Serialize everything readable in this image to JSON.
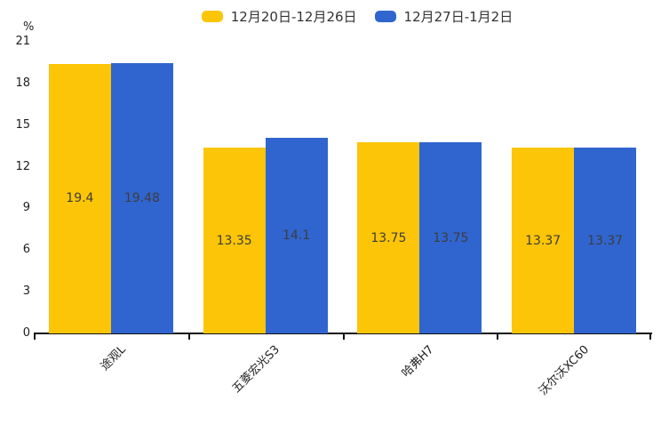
{
  "chart_data": {
    "type": "bar",
    "title": "",
    "y_axis_unit": "%",
    "categories": [
      "途观L",
      "五菱宏光S3",
      "哈弗H7",
      "沃尔沃XC60"
    ],
    "series": [
      {
        "name": "12月20日-12月26日",
        "color": "#FDC507",
        "values": [
          19.4,
          13.35,
          13.75,
          13.37
        ]
      },
      {
        "name": "12月27日-1月2日",
        "color": "#3065CF",
        "values": [
          19.48,
          14.1,
          13.75,
          13.37
        ]
      }
    ],
    "ylim": [
      0,
      21
    ],
    "yticks": [
      0,
      3,
      6,
      9,
      12,
      15,
      18,
      21
    ],
    "grid": false,
    "legend_position": "top",
    "value_labels": "inside-center",
    "xlabel_rotation_deg": 45,
    "axis_color": "#111111",
    "tick_label_color": "#1f1f1f",
    "value_label_color": "#3d3d3d"
  }
}
